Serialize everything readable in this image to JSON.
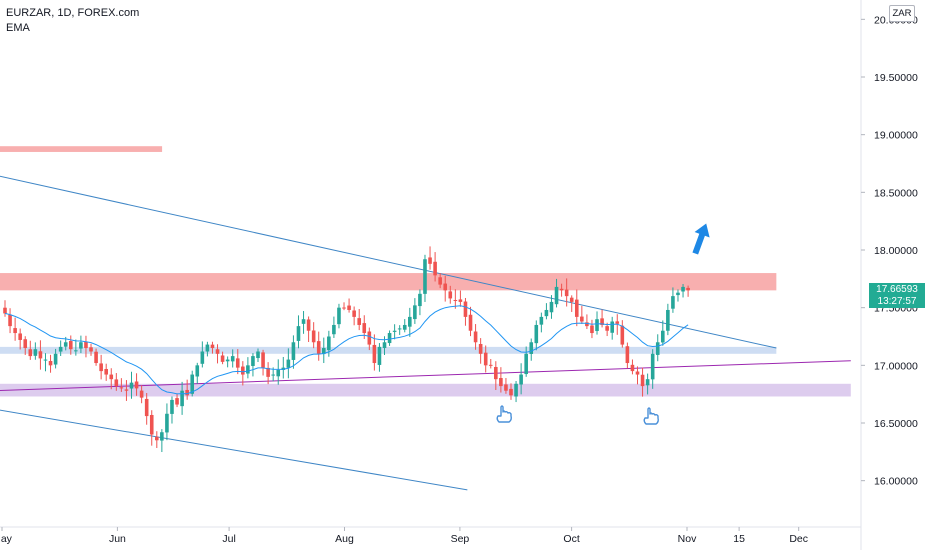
{
  "header": {
    "symbol": "EURZAR, 1D, FOREX.com",
    "indicator": "EMA"
  },
  "currency_label": "ZAR",
  "current_price": {
    "value": "17.66593",
    "countdown": "13:27:57"
  },
  "colors": {
    "up": "#26a69a",
    "down": "#ef5350",
    "ema": "#2196f3",
    "trendline": "#3f86c6",
    "support": "#9c27b0",
    "resistance_zone": "#f7a6a6",
    "support_zone_blue": "#c9d9f2",
    "support_zone_purple": "#d9c6ec",
    "arrow": "#1e88e5",
    "price_label": "#22ab94"
  },
  "icons": [
    "pointing-hand-icon",
    "up-arrow-icon"
  ],
  "chart_data": {
    "type": "candlestick",
    "title": "",
    "ylim": [
      15.52,
      20.22
    ],
    "y_ticks": [
      {
        "value": 20.0,
        "label": "20.00000"
      },
      {
        "value": 19.5,
        "label": "19.50000"
      },
      {
        "value": 19.0,
        "label": "19.00000"
      },
      {
        "value": 18.5,
        "label": "18.50000"
      },
      {
        "value": 18.0,
        "label": "18.00000"
      },
      {
        "value": 17.5,
        "label": "17.50000"
      },
      {
        "value": 17.0,
        "label": "17.00000"
      },
      {
        "value": 16.5,
        "label": "16.50000"
      },
      {
        "value": 16.0,
        "label": "16.00000"
      }
    ],
    "x_ticks": [
      {
        "date": "2022-05-01",
        "label": "May"
      },
      {
        "date": "2022-06-01",
        "label": "Jun"
      },
      {
        "date": "2022-07-01",
        "label": "Jul"
      },
      {
        "date": "2022-08-01",
        "label": "Aug"
      },
      {
        "date": "2022-09-01",
        "label": "Sep"
      },
      {
        "date": "2022-10-01",
        "label": "Oct"
      },
      {
        "date": "2022-11-01",
        "label": "Nov"
      },
      {
        "date": "2022-11-15",
        "label": "15"
      },
      {
        "date": "2022-12-01",
        "label": "Dec"
      }
    ],
    "candles_close": [
      17.45,
      17.34,
      17.28,
      17.22,
      17.15,
      17.08,
      17.14,
      17.06,
      17.05,
      17.0,
      17.1,
      17.16,
      17.2,
      17.14,
      17.13,
      17.2,
      17.15,
      17.12,
      17.02,
      16.95,
      16.92,
      16.88,
      16.82,
      16.8,
      16.78,
      16.85,
      16.8,
      16.72,
      16.56,
      16.4,
      16.35,
      16.42,
      16.58,
      16.7,
      16.66,
      16.78,
      16.74,
      16.92,
      17.0,
      17.12,
      17.18,
      17.15,
      17.1,
      17.03,
      17.05,
      17.08,
      16.98,
      16.92,
      17.0,
      17.08,
      17.12,
      16.98,
      16.9,
      16.92,
      16.96,
      16.98,
      17.05,
      17.2,
      17.34,
      17.4,
      17.3,
      17.2,
      17.1,
      17.15,
      17.25,
      17.35,
      17.5,
      17.5,
      17.48,
      17.42,
      17.35,
      17.28,
      17.18,
      17.02,
      17.16,
      17.2,
      17.28,
      17.3,
      17.32,
      17.35,
      17.42,
      17.52,
      17.62,
      17.92,
      17.88,
      17.78,
      17.7,
      17.65,
      17.58,
      17.56,
      17.55,
      17.42,
      17.3,
      17.2,
      17.1,
      17.0,
      17.0,
      16.88,
      16.82,
      16.78,
      16.74,
      16.84,
      16.92,
      17.1,
      17.2,
      17.35,
      17.42,
      17.48,
      17.55,
      17.68,
      17.65,
      17.6,
      17.55,
      17.42,
      17.38,
      17.34,
      17.28,
      17.4,
      17.35,
      17.3,
      17.38,
      17.36,
      17.18,
      17.02,
      16.95,
      16.92,
      16.82,
      16.88,
      17.1,
      17.2,
      17.3,
      17.48,
      17.6,
      17.63,
      17.68,
      17.65
    ],
    "ema_values": "EMA(20) of close",
    "annotations": [
      {
        "type": "zone",
        "name": "resistance",
        "y": [
          17.65,
          17.8
        ],
        "x": [
          "2022-04-29",
          "2022-11-25"
        ]
      },
      {
        "type": "zone",
        "name": "support",
        "y": [
          17.1,
          17.16
        ],
        "x": [
          "2022-04-29",
          "2022-11-25"
        ]
      },
      {
        "type": "zone",
        "name": "support",
        "y": [
          16.73,
          16.84
        ],
        "x": [
          "2022-04-29",
          "2022-12-15"
        ]
      },
      {
        "type": "zone",
        "name": "resistance",
        "y": [
          18.85,
          18.9
        ],
        "x": [
          "2022-04-29",
          "2022-06-13"
        ]
      },
      {
        "type": "trendline",
        "points": [
          [
            "2022-04-29",
            18.65
          ],
          [
            "2022-11-25",
            17.15
          ]
        ]
      },
      {
        "type": "trendline",
        "points": [
          [
            "2022-04-29",
            16.62
          ],
          [
            "2022-09-03",
            15.92
          ]
        ]
      },
      {
        "type": "trendline",
        "points": [
          [
            "2022-04-29",
            16.78
          ],
          [
            "2022-12-15",
            17.04
          ]
        ]
      }
    ]
  }
}
